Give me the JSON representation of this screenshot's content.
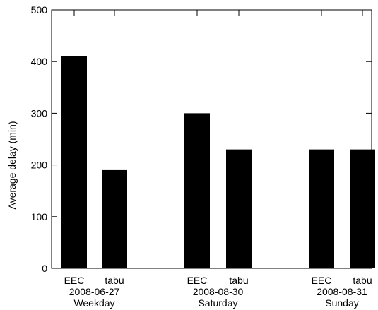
{
  "chart_data": {
    "type": "bar",
    "title": "",
    "ylabel": "Average delay (min)",
    "xlabel": "",
    "ylim": [
      0,
      500
    ],
    "yticks": [
      0,
      100,
      200,
      300,
      400,
      500
    ],
    "grid": false,
    "legend": "none",
    "bar_color": "#000000",
    "groups": [
      {
        "date": "2008-06-27",
        "day": "Weekday",
        "bars": [
          {
            "label": "EEC",
            "value": 410
          },
          {
            "label": "tabu",
            "value": 190
          }
        ]
      },
      {
        "date": "2008-08-30",
        "day": "Saturday",
        "bars": [
          {
            "label": "EEC",
            "value": 300
          },
          {
            "label": "tabu",
            "value": 230
          }
        ]
      },
      {
        "date": "2008-08-31",
        "day": "Sunday",
        "bars": [
          {
            "label": "EEC",
            "value": 230
          },
          {
            "label": "tabu",
            "value": 230
          }
        ]
      }
    ]
  }
}
